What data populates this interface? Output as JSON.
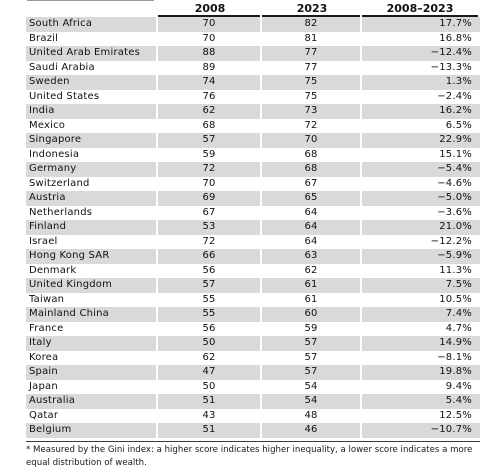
{
  "header": {
    "col_2008": "2008",
    "col_2023": "2023",
    "col_change": "2008–2023"
  },
  "rows": [
    {
      "name": "South Africa",
      "v2008": "70",
      "v2023": "82",
      "change": "17.7%"
    },
    {
      "name": "Brazil",
      "v2008": "70",
      "v2023": "81",
      "change": "16.8%"
    },
    {
      "name": "United Arab Emirates",
      "v2008": "88",
      "v2023": "77",
      "change": "−12.4%"
    },
    {
      "name": "Saudi Arabia",
      "v2008": "89",
      "v2023": "77",
      "change": "−13.3%"
    },
    {
      "name": "Sweden",
      "v2008": "74",
      "v2023": "75",
      "change": "1.3%"
    },
    {
      "name": "United States",
      "v2008": "76",
      "v2023": "75",
      "change": "−2.4%"
    },
    {
      "name": "India",
      "v2008": "62",
      "v2023": "73",
      "change": "16.2%"
    },
    {
      "name": "Mexico",
      "v2008": "68",
      "v2023": "72",
      "change": "6.5%"
    },
    {
      "name": "Singapore",
      "v2008": "57",
      "v2023": "70",
      "change": "22.9%"
    },
    {
      "name": "Indonesia",
      "v2008": "59",
      "v2023": "68",
      "change": "15.1%"
    },
    {
      "name": "Germany",
      "v2008": "72",
      "v2023": "68",
      "change": "−5.4%"
    },
    {
      "name": "Switzerland",
      "v2008": "70",
      "v2023": "67",
      "change": "−4.6%"
    },
    {
      "name": "Austria",
      "v2008": "69",
      "v2023": "65",
      "change": "−5.0%"
    },
    {
      "name": "Netherlands",
      "v2008": "67",
      "v2023": "64",
      "change": "−3.6%"
    },
    {
      "name": "Finland",
      "v2008": "53",
      "v2023": "64",
      "change": "21.0%"
    },
    {
      "name": "Israel",
      "v2008": "72",
      "v2023": "64",
      "change": "−12.2%"
    },
    {
      "name": "Hong Kong SAR",
      "v2008": "66",
      "v2023": "63",
      "change": "−5.9%"
    },
    {
      "name": "Denmark",
      "v2008": "56",
      "v2023": "62",
      "change": "11.3%"
    },
    {
      "name": "United Kingdom",
      "v2008": "57",
      "v2023": "61",
      "change": "7.5%"
    },
    {
      "name": "Taiwan",
      "v2008": "55",
      "v2023": "61",
      "change": "10.5%"
    },
    {
      "name": "Mainland China",
      "v2008": "55",
      "v2023": "60",
      "change": "7.4%"
    },
    {
      "name": "France",
      "v2008": "56",
      "v2023": "59",
      "change": "4.7%"
    },
    {
      "name": "Italy",
      "v2008": "50",
      "v2023": "57",
      "change": "14.9%"
    },
    {
      "name": "Korea",
      "v2008": "62",
      "v2023": "57",
      "change": "−8.1%"
    },
    {
      "name": "Spain",
      "v2008": "47",
      "v2023": "57",
      "change": "19.8%"
    },
    {
      "name": "Japan",
      "v2008": "50",
      "v2023": "54",
      "change": "9.4%"
    },
    {
      "name": "Australia",
      "v2008": "51",
      "v2023": "54",
      "change": "5.4%"
    },
    {
      "name": "Qatar",
      "v2008": "43",
      "v2023": "48",
      "change": "12.5%"
    },
    {
      "name": "Belgium",
      "v2008": "51",
      "v2023": "46",
      "change": "−10.7%"
    }
  ],
  "footnote": "* Measured by the Gini index: a higher score indicates higher inequality, a lower score indicates a more equal distribution of wealth.",
  "colors": {
    "stripe": "#d9d9d9",
    "rule": "#1a1a1a"
  }
}
